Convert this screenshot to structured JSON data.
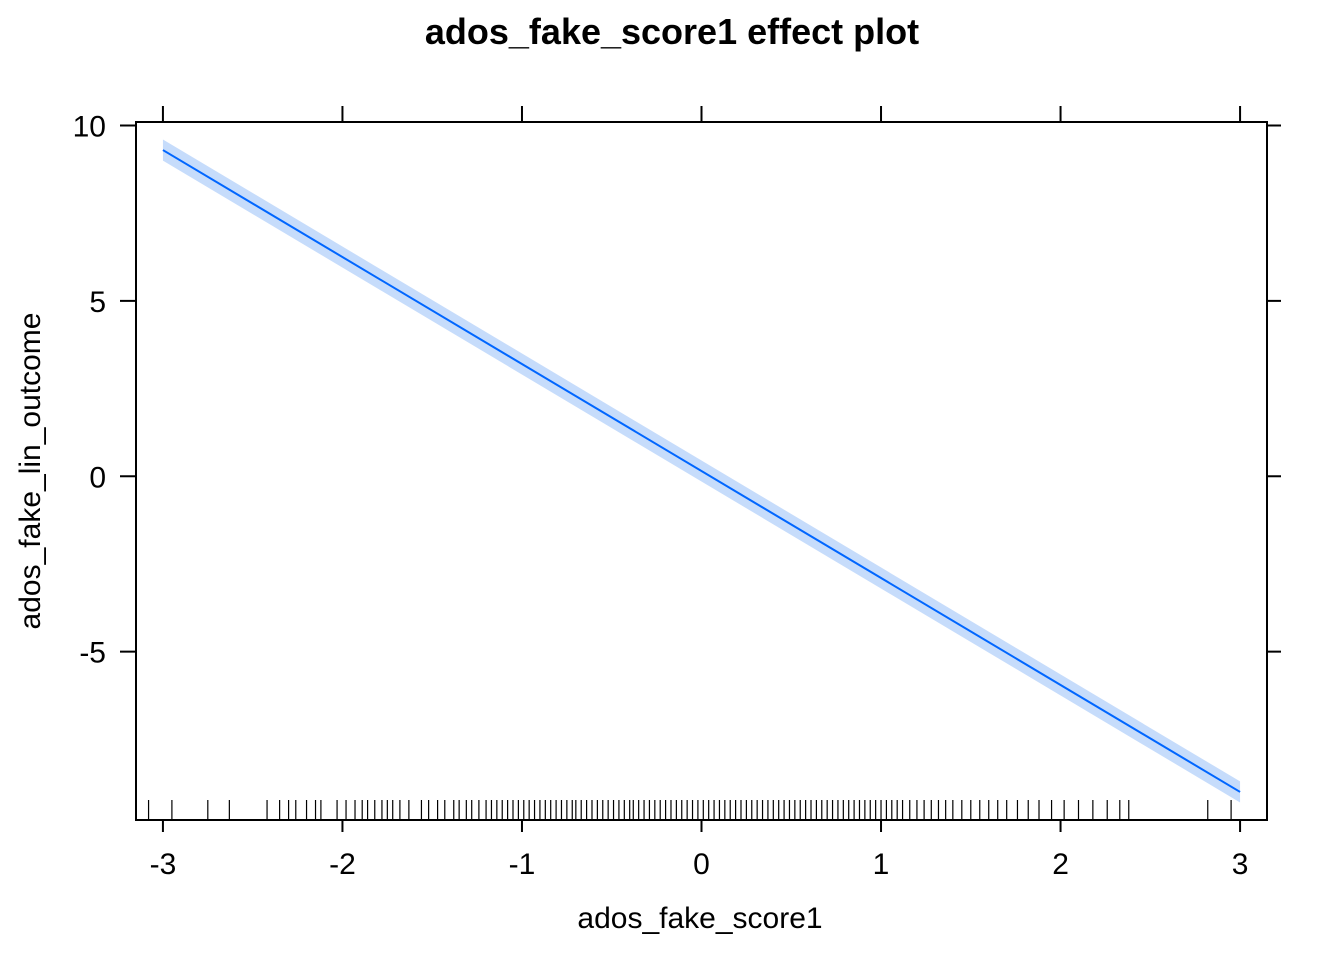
{
  "chart_data": {
    "type": "line",
    "title": "ados_fake_score1 effect plot",
    "xlabel": "ados_fake_score1",
    "ylabel": "ados_fake_lin_outcome",
    "xlim": [
      -3.15,
      3.15
    ],
    "ylim": [
      -9.8,
      10.1
    ],
    "x_ticks": [
      -3,
      -2,
      -1,
      0,
      1,
      2,
      3
    ],
    "x_tick_labels": [
      "-3",
      "-2",
      "-1",
      "0",
      "1",
      "2",
      "3"
    ],
    "y_ticks": [
      -5,
      0,
      5,
      10
    ],
    "y_tick_labels": [
      "-5",
      "0",
      "5",
      "10"
    ],
    "grid": false,
    "line_color": "#0066ff",
    "band_color": "#c6dcfb",
    "series": [
      {
        "x": [
          -3,
          3
        ],
        "y": [
          9.3,
          -9.0
        ],
        "lower": [
          9.0,
          -9.3
        ],
        "upper": [
          9.6,
          -8.7
        ]
      }
    ],
    "rug_x": [
      -3.08,
      -2.95,
      -2.75,
      -2.63,
      -2.42,
      -2.35,
      -2.3,
      -2.26,
      -2.2,
      -2.15,
      -2.12,
      -2.03,
      -1.98,
      -1.93,
      -1.89,
      -1.86,
      -1.82,
      -1.78,
      -1.75,
      -1.72,
      -1.68,
      -1.63,
      -1.56,
      -1.52,
      -1.47,
      -1.43,
      -1.38,
      -1.35,
      -1.31,
      -1.28,
      -1.24,
      -1.2,
      -1.17,
      -1.14,
      -1.11,
      -1.08,
      -1.05,
      -1.02,
      -0.99,
      -0.96,
      -0.93,
      -0.9,
      -0.87,
      -0.84,
      -0.81,
      -0.78,
      -0.75,
      -0.72,
      -0.7,
      -0.67,
      -0.64,
      -0.61,
      -0.58,
      -0.55,
      -0.52,
      -0.49,
      -0.46,
      -0.43,
      -0.4,
      -0.38,
      -0.35,
      -0.32,
      -0.29,
      -0.26,
      -0.23,
      -0.2,
      -0.17,
      -0.14,
      -0.11,
      -0.08,
      -0.05,
      -0.02,
      0.01,
      0.04,
      0.07,
      0.1,
      0.13,
      0.16,
      0.19,
      0.22,
      0.25,
      0.28,
      0.31,
      0.34,
      0.37,
      0.4,
      0.43,
      0.46,
      0.49,
      0.52,
      0.55,
      0.58,
      0.61,
      0.64,
      0.67,
      0.7,
      0.73,
      0.76,
      0.79,
      0.82,
      0.85,
      0.88,
      0.91,
      0.94,
      0.97,
      1.0,
      1.03,
      1.06,
      1.09,
      1.12,
      1.16,
      1.2,
      1.24,
      1.28,
      1.32,
      1.36,
      1.4,
      1.45,
      1.5,
      1.55,
      1.6,
      1.65,
      1.7,
      1.76,
      1.82,
      1.88,
      1.95,
      2.02,
      2.1,
      2.18,
      2.26,
      2.33,
      2.38,
      2.82,
      2.95
    ]
  }
}
